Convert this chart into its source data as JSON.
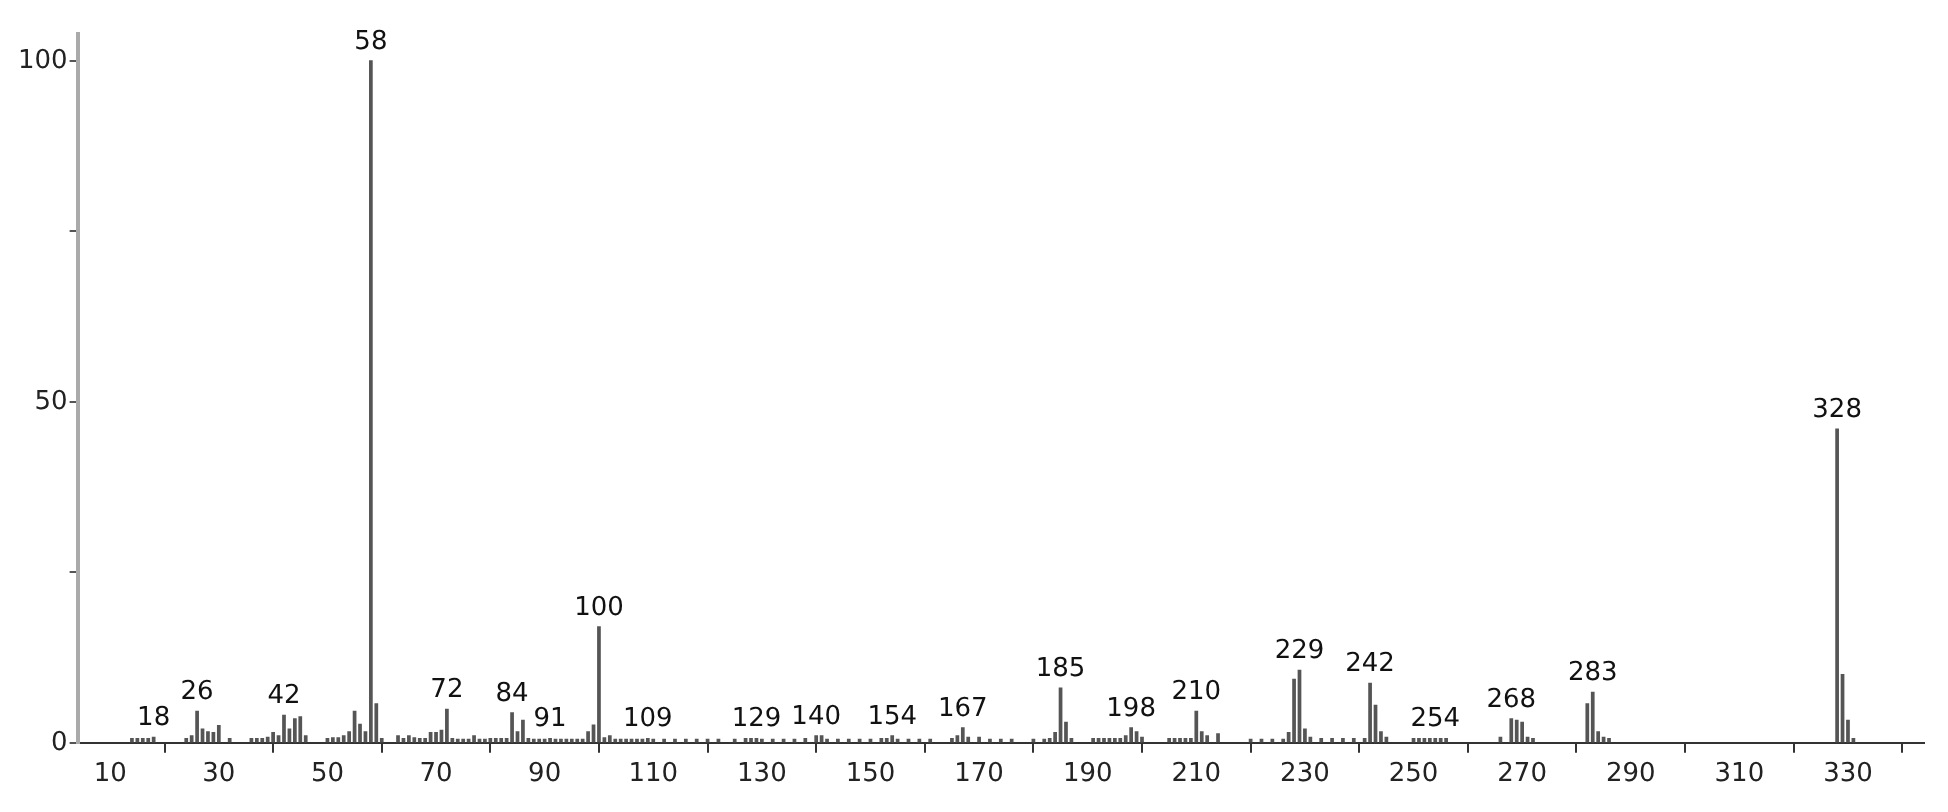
{
  "chart_data": {
    "type": "bar",
    "color": "#555555",
    "x": [
      14,
      15,
      16,
      17,
      18,
      24,
      25,
      26,
      27,
      28,
      29,
      30,
      32,
      36,
      37,
      38,
      39,
      40,
      41,
      42,
      43,
      44,
      45,
      46,
      50,
      51,
      52,
      53,
      54,
      55,
      56,
      57,
      58,
      59,
      60,
      63,
      64,
      65,
      66,
      67,
      68,
      69,
      70,
      71,
      72,
      73,
      74,
      75,
      76,
      77,
      78,
      79,
      80,
      81,
      82,
      83,
      84,
      85,
      86,
      87,
      88,
      89,
      90,
      91,
      92,
      93,
      94,
      95,
      96,
      97,
      98,
      99,
      100,
      101,
      102,
      103,
      104,
      105,
      106,
      107,
      108,
      109,
      110,
      112,
      114,
      116,
      118,
      120,
      122,
      125,
      127,
      128,
      129,
      130,
      132,
      134,
      136,
      138,
      140,
      141,
      142,
      144,
      146,
      148,
      150,
      152,
      153,
      154,
      155,
      157,
      159,
      161,
      165,
      166,
      167,
      168,
      170,
      172,
      174,
      176,
      180,
      182,
      183,
      184,
      185,
      186,
      187,
      191,
      192,
      193,
      194,
      195,
      196,
      197,
      198,
      199,
      200,
      205,
      206,
      207,
      208,
      209,
      210,
      211,
      212,
      214,
      220,
      222,
      224,
      226,
      227,
      228,
      229,
      230,
      231,
      233,
      235,
      237,
      239,
      241,
      242,
      243,
      244,
      245,
      250,
      251,
      252,
      253,
      254,
      255,
      256,
      266,
      268,
      269,
      270,
      271,
      272,
      282,
      283,
      284,
      285,
      286,
      328,
      329,
      330,
      331
    ],
    "values": [
      0.6,
      0.6,
      0.6,
      0.6,
      0.8,
      0.6,
      1,
      4.6,
      2,
      1.6,
      1.5,
      2.5,
      0.6,
      0.6,
      0.6,
      0.6,
      0.8,
      1.5,
      1,
      4,
      2,
      3.5,
      3.8,
      1,
      0.6,
      0.7,
      0.7,
      1,
      1.6,
      4.6,
      2.7,
      1.6,
      100,
      5.7,
      0.6,
      1,
      0.6,
      1,
      0.7,
      0.6,
      0.6,
      1.5,
      1.5,
      1.8,
      4.9,
      0.6,
      0.5,
      0.5,
      0.5,
      1,
      0.5,
      0.5,
      0.6,
      0.6,
      0.6,
      0.6,
      4.4,
      1.6,
      3.3,
      0.6,
      0.5,
      0.5,
      0.5,
      0.6,
      0.5,
      0.5,
      0.5,
      0.5,
      0.5,
      0.5,
      1.6,
      2.6,
      17,
      0.7,
      1,
      0.5,
      0.5,
      0.5,
      0.5,
      0.5,
      0.5,
      0.6,
      0.5,
      0.5,
      0.5,
      0.5,
      0.5,
      0.5,
      0.5,
      0.5,
      0.6,
      0.6,
      0.6,
      0.5,
      0.5,
      0.5,
      0.5,
      0.6,
      1,
      1,
      0.5,
      0.5,
      0.5,
      0.5,
      0.5,
      0.6,
      0.6,
      1,
      0.5,
      0.5,
      0.5,
      0.5,
      0.6,
      1,
      2.2,
      0.8,
      0.8,
      0.5,
      0.5,
      0.5,
      0.5,
      0.5,
      0.6,
      1.5,
      8,
      3,
      0.6,
      0.6,
      0.6,
      0.6,
      0.6,
      0.6,
      0.6,
      1,
      2.2,
      1.6,
      0.8,
      0.6,
      0.6,
      0.6,
      0.6,
      0.6,
      4.6,
      1.6,
      1,
      1.3,
      0.5,
      0.5,
      0.5,
      0.5,
      1.5,
      9.3,
      10.6,
      2,
      0.8,
      0.6,
      0.6,
      0.6,
      0.6,
      0.6,
      8.7,
      5.5,
      1.6,
      0.8,
      0.6,
      0.6,
      0.6,
      0.6,
      0.6,
      0.6,
      0.6,
      0.8,
      3.5,
      3.3,
      3,
      0.8,
      0.6,
      5.7,
      7.4,
      1.6,
      0.8,
      0.6,
      46,
      10,
      3.3,
      0.6
    ],
    "xlim": [
      4,
      344
    ],
    "xticks": [
      10,
      30,
      50,
      70,
      90,
      110,
      130,
      150,
      170,
      190,
      210,
      230,
      250,
      270,
      290,
      310,
      330
    ],
    "ylim": [
      0,
      104
    ],
    "yticks": [
      0,
      {
        "value": 25,
        "label": null
      },
      50,
      {
        "value": 75,
        "label": null
      },
      100
    ],
    "annotations": [
      {
        "text": "18",
        "x": 18,
        "y": 0.8
      },
      {
        "text": "26",
        "x": 26,
        "y": 4.6
      },
      {
        "text": "42",
        "x": 42,
        "y": 4
      },
      {
        "text": "58",
        "x": 58,
        "y": 100
      },
      {
        "text": "72",
        "x": 72,
        "y": 4.9
      },
      {
        "text": "84",
        "x": 84,
        "y": 4.4
      },
      {
        "text": "91",
        "x": 91,
        "y": 0.6
      },
      {
        "text": "100",
        "x": 100,
        "y": 17
      },
      {
        "text": "109",
        "x": 109,
        "y": 0.6
      },
      {
        "text": "129",
        "x": 129,
        "y": 0.6
      },
      {
        "text": "140",
        "x": 140,
        "y": 1
      },
      {
        "text": "154",
        "x": 154,
        "y": 1
      },
      {
        "text": "167",
        "x": 167,
        "y": 2.2
      },
      {
        "text": "185",
        "x": 185,
        "y": 8
      },
      {
        "text": "198",
        "x": 198,
        "y": 2.2
      },
      {
        "text": "210",
        "x": 210,
        "y": 4.6
      },
      {
        "text": "229",
        "x": 229,
        "y": 10.6
      },
      {
        "text": "242",
        "x": 242,
        "y": 8.7
      },
      {
        "text": "254",
        "x": 254,
        "y": 0.6
      },
      {
        "text": "268",
        "x": 268,
        "y": 3.5
      },
      {
        "text": "283",
        "x": 283,
        "y": 7.4
      },
      {
        "text": "328",
        "x": 328,
        "y": 46
      }
    ]
  }
}
